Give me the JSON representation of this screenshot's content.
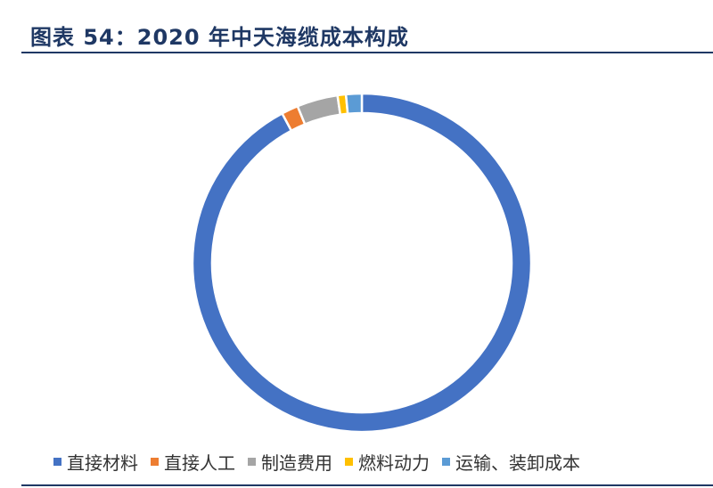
{
  "header": {
    "title": "图表 54：2020 年中天海缆成本构成"
  },
  "chart_data": {
    "type": "pie",
    "categories": [
      "直接材料",
      "直接人工",
      "制造费用",
      "燃料动力",
      "运输、装卸成本"
    ],
    "values": [
      92.2,
      1.6,
      3.9,
      0.8,
      1.5
    ],
    "colors": [
      "#4472c4",
      "#ed7d31",
      "#a5a5a5",
      "#ffc000",
      "#5b9bd5"
    ],
    "legend_position": "bottom"
  }
}
